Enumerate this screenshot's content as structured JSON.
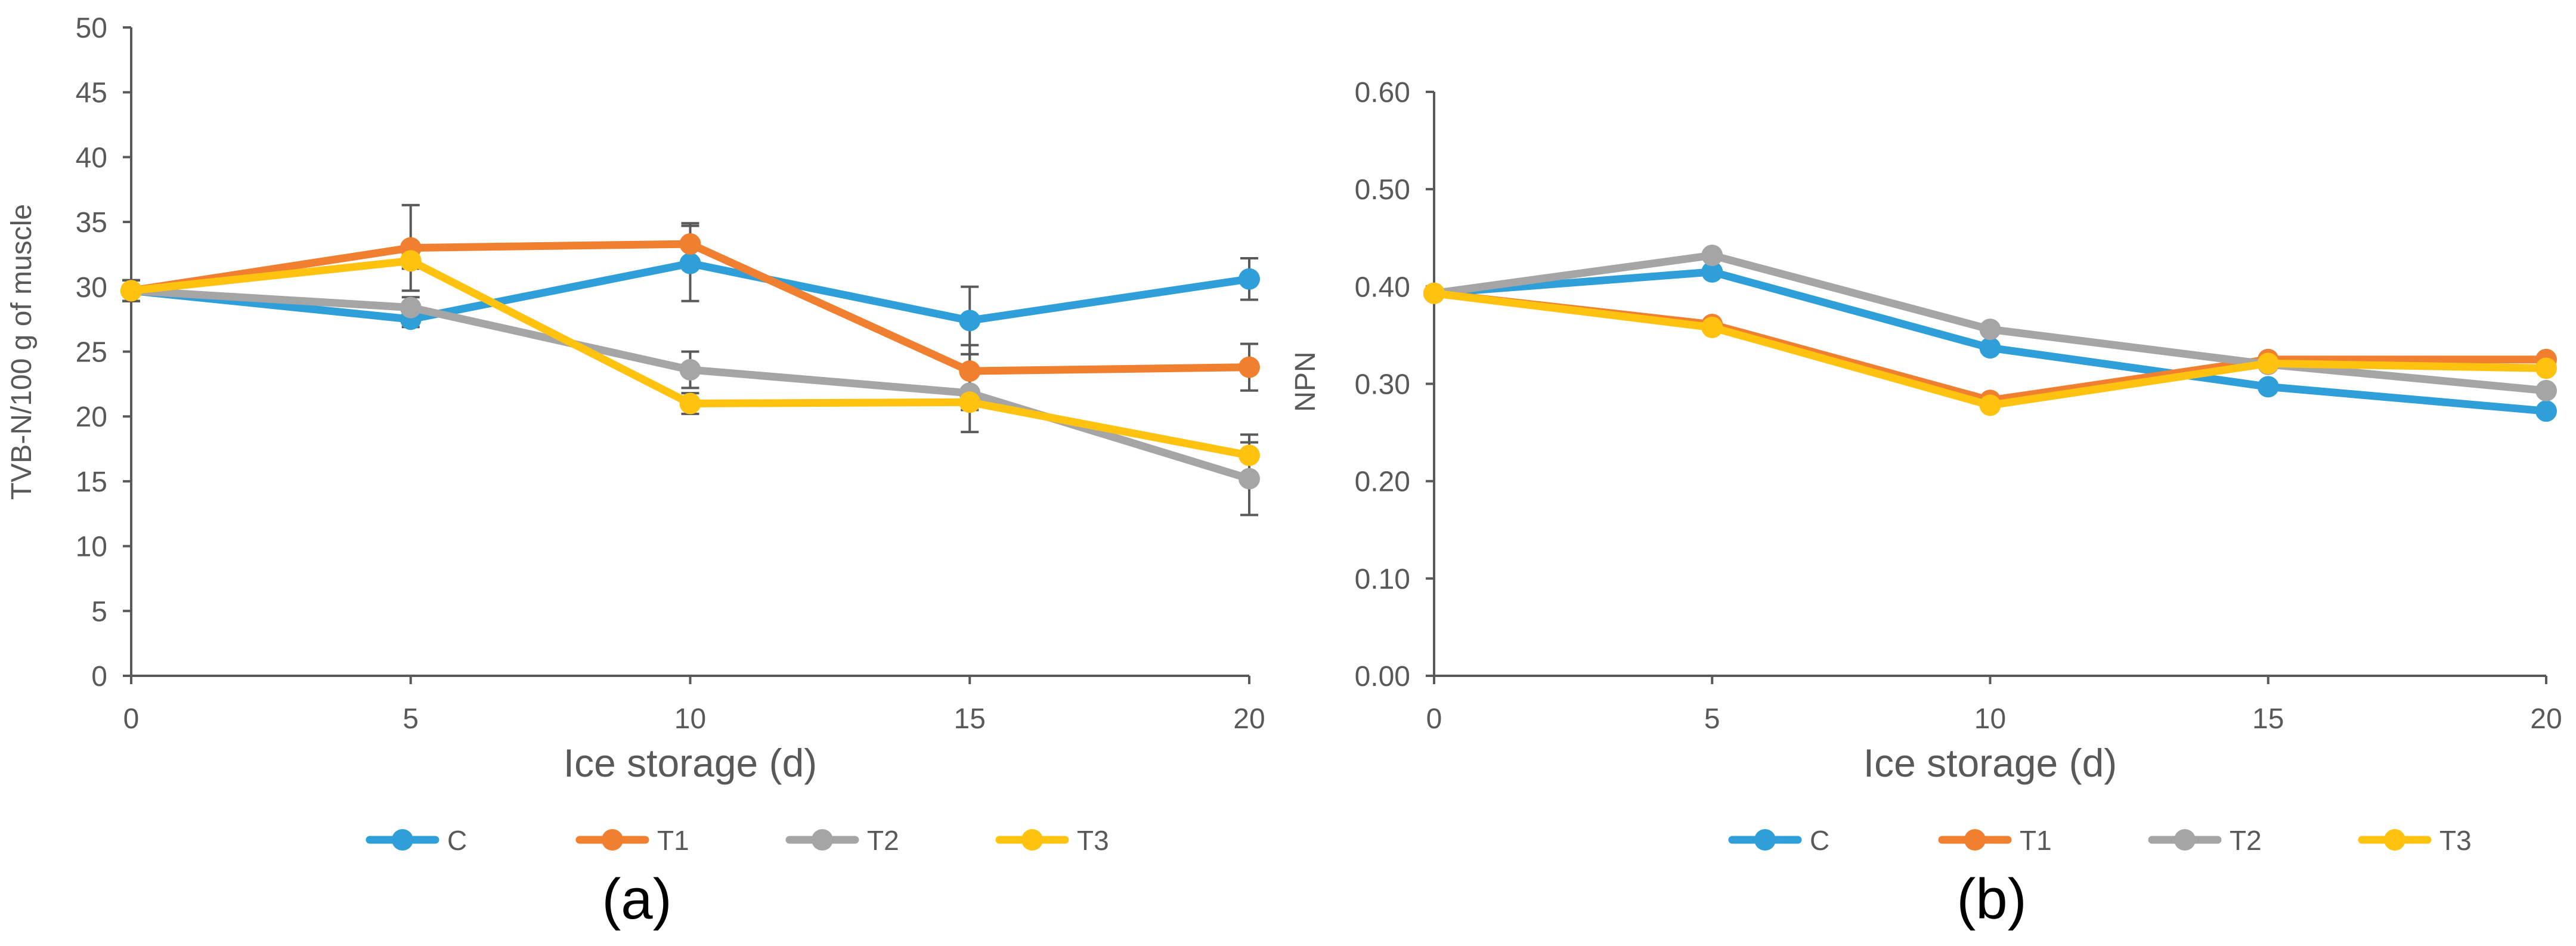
{
  "chart_data": [
    {
      "type": "line",
      "panel_label": "(a)",
      "xlabel": "Ice storage (d)",
      "ylabel": "TVB-N/100 g of muscle",
      "x": [
        0,
        5,
        10,
        15,
        20
      ],
      "xlim": [
        0,
        20
      ],
      "ylim": [
        0,
        50
      ],
      "x_ticks": [
        "0",
        "5",
        "10",
        "15",
        "20"
      ],
      "y_ticks": [
        "0",
        "5",
        "10",
        "15",
        "20",
        "25",
        "30",
        "35",
        "40",
        "45",
        "50"
      ],
      "legend_position": "bottom",
      "series": [
        {
          "name": "C",
          "color": "#2E9FD8",
          "values": [
            29.7,
            27.5,
            31.8,
            27.4,
            30.6
          ],
          "errors": [
            0.8,
            0.6,
            2.9,
            2.6,
            1.6
          ]
        },
        {
          "name": "T1",
          "color": "#F07F2F",
          "values": [
            29.7,
            33.0,
            33.3,
            23.5,
            23.8
          ],
          "errors": [
            0.8,
            3.3,
            1.6,
            2.0,
            1.8
          ]
        },
        {
          "name": "T2",
          "color": "#A5A5A5",
          "values": [
            29.7,
            28.4,
            23.6,
            21.8,
            15.2
          ],
          "errors": [
            0.8,
            0.8,
            1.4,
            3.0,
            2.8
          ]
        },
        {
          "name": "T3",
          "color": "#FFC20E",
          "values": [
            29.7,
            32.0,
            21.0,
            21.1,
            17.0
          ],
          "errors": [
            0.8,
            0.6,
            0.8,
            0.6,
            1.6
          ]
        }
      ]
    },
    {
      "type": "line",
      "panel_label": "(b)",
      "xlabel": "Ice storage (d)",
      "ylabel": "NPN",
      "x": [
        0,
        5,
        10,
        15,
        20
      ],
      "xlim": [
        0,
        20
      ],
      "ylim": [
        0,
        0.6
      ],
      "x_ticks": [
        "0",
        "5",
        "10",
        "15",
        "20"
      ],
      "y_ticks": [
        "0.00",
        "0.10",
        "0.20",
        "0.30",
        "0.40",
        "0.50",
        "0.60"
      ],
      "legend_position": "bottom",
      "series": [
        {
          "name": "C",
          "color": "#2E9FD8",
          "values": [
            0.393,
            0.415,
            0.337,
            0.297,
            0.272
          ]
        },
        {
          "name": "T1",
          "color": "#F07F2F",
          "values": [
            0.393,
            0.361,
            0.283,
            0.325,
            0.325
          ]
        },
        {
          "name": "T2",
          "color": "#A5A5A5",
          "values": [
            0.393,
            0.432,
            0.356,
            0.32,
            0.293
          ]
        },
        {
          "name": "T3",
          "color": "#FFC20E",
          "values": [
            0.393,
            0.358,
            0.278,
            0.321,
            0.316
          ]
        }
      ]
    }
  ]
}
